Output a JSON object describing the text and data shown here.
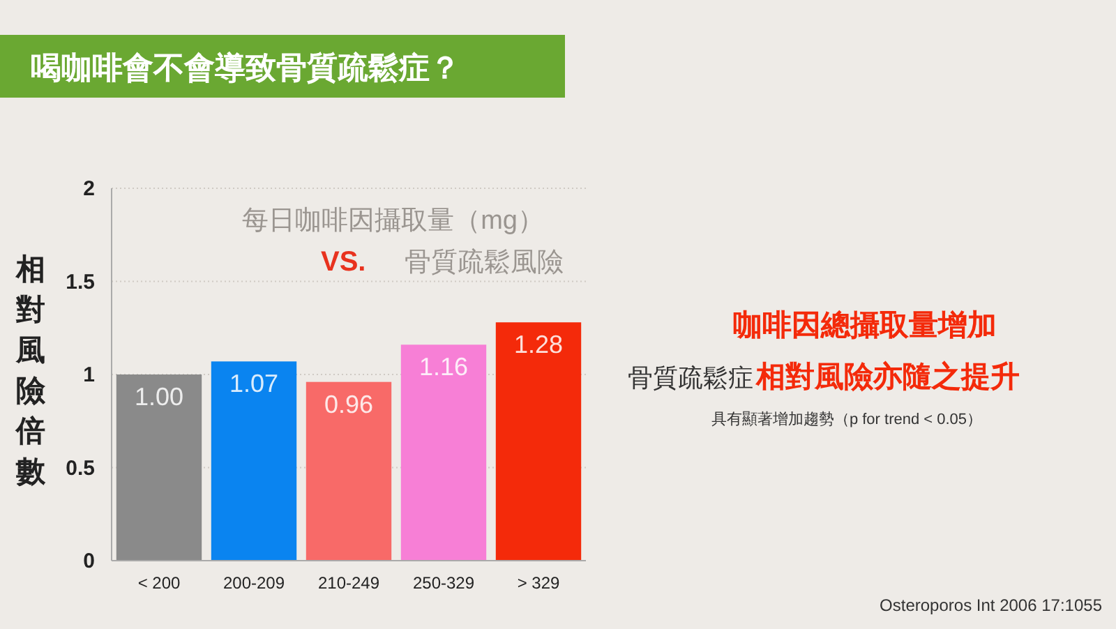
{
  "chart_data": {
    "type": "bar",
    "title": "喝咖啡會不會導致骨質疏鬆症？",
    "subtitle": "每日咖啡因攝取量（mg）",
    "ylabel": "相對風險倍數",
    "categories": [
      "< 200",
      "200-209",
      "210-249",
      "250-329",
      "> 329"
    ],
    "values": [
      1.0,
      1.07,
      0.96,
      1.16,
      1.28
    ],
    "colors": [
      "#8a8a8a",
      "#0a84f0",
      "#f86a68",
      "#f77fd6",
      "#f42a0a"
    ],
    "value_labels": [
      "1.00",
      "1.07",
      "0.96",
      "1.16",
      "1.28"
    ],
    "ylim": [
      0,
      2
    ],
    "yticks": [
      0,
      0.5,
      1,
      1.5,
      2
    ],
    "grid": "y",
    "annotations": [
      "VS.",
      "骨質疏鬆風險",
      "咖啡因總攝取量增加",
      "骨質疏鬆症",
      "相對風險亦隨之提升",
      "具有顯著增加趨勢（p for trend < 0.05）",
      "Osteroporos Int 2006 17:1055"
    ]
  }
}
